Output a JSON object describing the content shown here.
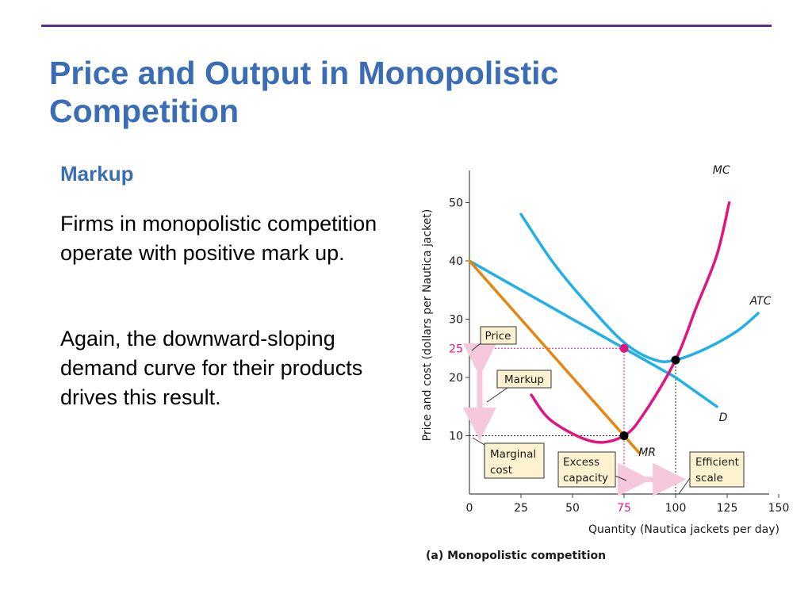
{
  "slide": {
    "title_line1": "Price and Output in Monopolistic",
    "title_line2": "Competition",
    "section_heading": "Markup",
    "paragraph1": "Firms in monopolistic competition operate with positive mark up.",
    "paragraph2": "Again, the downward-sloping demand curve for their products drives this result."
  },
  "colors": {
    "title": "#3a6db4",
    "rule": "#5b2c8f",
    "demand": "#1fb0e6",
    "atc": "#1fb0e6",
    "mc": "#e0157f",
    "mr": "#e5860f",
    "callout_fill": "#fdf2cf",
    "arrow": "#f6c8dc"
  },
  "chart_data": {
    "type": "line",
    "title": "(a) Monopolistic competition",
    "xlabel": "Quantity (Nautica jackets per day)",
    "ylabel": "Price and cost (dollars per Nautica jacket)",
    "xlim": [
      0,
      150
    ],
    "ylim": [
      0,
      55
    ],
    "x_ticks": [
      "0",
      "25",
      "50",
      "75",
      "100",
      "125",
      "150"
    ],
    "y_ticks": [
      "10",
      "20",
      "30",
      "40",
      "50"
    ],
    "highlight_x_tick": "75",
    "highlight_y_tick": "25",
    "series": [
      {
        "name": "D",
        "points": [
          [
            0,
            40
          ],
          [
            25,
            35
          ],
          [
            50,
            30
          ],
          [
            75,
            25
          ],
          [
            100,
            20
          ],
          [
            120,
            15
          ]
        ]
      },
      {
        "name": "MR",
        "points": [
          [
            0,
            40
          ],
          [
            25,
            30
          ],
          [
            50,
            20
          ],
          [
            75,
            10
          ],
          [
            82.5,
            7
          ]
        ]
      },
      {
        "name": "ATC",
        "points": [
          [
            25,
            48
          ],
          [
            40,
            40
          ],
          [
            55,
            33.5
          ],
          [
            75,
            26
          ],
          [
            90,
            23
          ],
          [
            100,
            23
          ],
          [
            115,
            25
          ],
          [
            130,
            28
          ],
          [
            140,
            31
          ]
        ]
      },
      {
        "name": "MC",
        "points": [
          [
            30,
            17
          ],
          [
            40,
            12.5
          ],
          [
            60,
            9
          ],
          [
            75,
            10
          ],
          [
            85,
            14
          ],
          [
            100,
            23
          ],
          [
            110,
            32
          ],
          [
            120,
            41
          ],
          [
            126,
            50
          ]
        ]
      }
    ],
    "points": [
      {
        "label": "profit-max price",
        "x": 75,
        "y": 25,
        "color": "pink"
      },
      {
        "label": "marginal cost at output",
        "x": 75,
        "y": 10,
        "color": "black"
      },
      {
        "label": "efficient scale",
        "x": 100,
        "y": 23,
        "color": "black"
      }
    ],
    "annotations": {
      "price": "Price",
      "markup": "Markup",
      "marginal_cost_1": "Marginal",
      "marginal_cost_2": "cost",
      "excess_capacity_1": "Excess",
      "excess_capacity_2": "capacity",
      "efficient_scale_1": "Efficient",
      "efficient_scale_2": "scale"
    }
  }
}
